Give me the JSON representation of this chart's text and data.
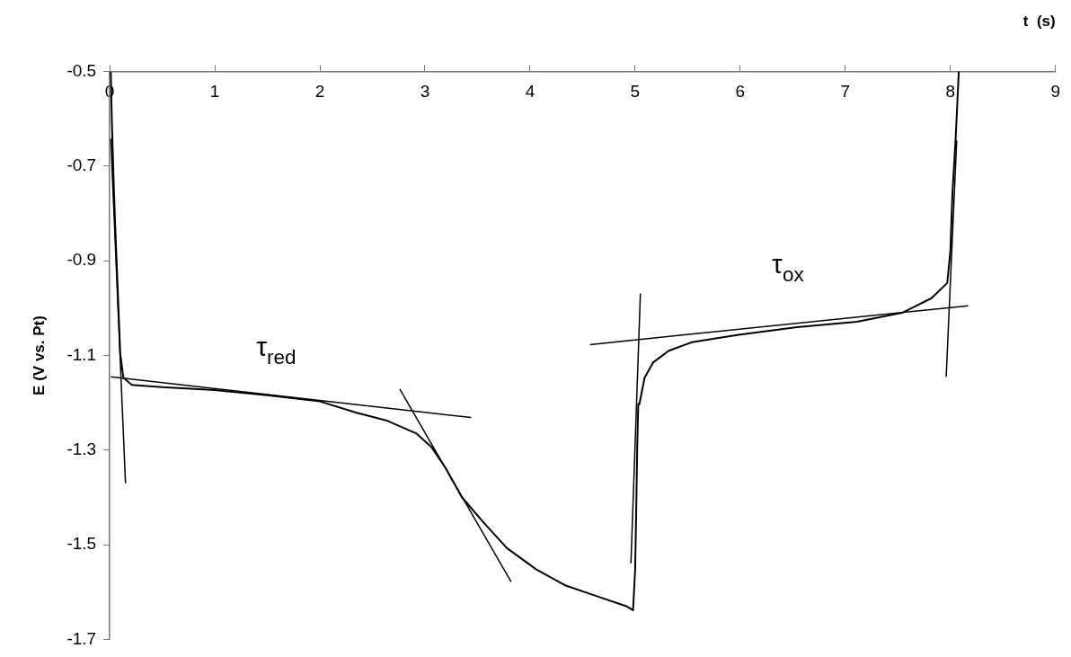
{
  "chart_data": {
    "type": "line",
    "xlabel": "t  (s)",
    "ylabel": "E (V vs. Pt)",
    "xlim": [
      0,
      9
    ],
    "xticks": [
      0,
      1,
      2,
      3,
      4,
      5,
      6,
      7,
      8,
      9
    ],
    "ylim": [
      -1.7,
      -0.5
    ],
    "yticks": [
      -1.7,
      -1.5,
      -1.3,
      -1.1,
      -0.9,
      -0.7,
      -0.5
    ],
    "grid": false,
    "legend": false,
    "marker": "none",
    "line_style": "solid",
    "series": [
      {
        "color": "#000000",
        "x": [
          0.01,
          0.02,
          0.04,
          0.06,
          0.08,
          0.1,
          0.13,
          0.21,
          0.5,
          1,
          1.5,
          2,
          2.35,
          2.63,
          2.92,
          3.06,
          3.2,
          3.35,
          3.55,
          3.78,
          4.06,
          4.34,
          4.63,
          4.91,
          4.98,
          5.0,
          5.01,
          5.02,
          5.03,
          5.04,
          5.09,
          5.17,
          5.32,
          5.54,
          5.97,
          6.54,
          7.11,
          7.54,
          7.82,
          7.97,
          8.0,
          8.02,
          8.05,
          8.08
        ],
        "values": [
          -0.5,
          -0.605,
          -0.754,
          -0.872,
          -0.984,
          -1.096,
          -1.147,
          -1.162,
          -1.167,
          -1.173,
          -1.184,
          -1.197,
          -1.221,
          -1.237,
          -1.265,
          -1.293,
          -1.339,
          -1.399,
          -1.451,
          -1.507,
          -1.552,
          -1.586,
          -1.608,
          -1.629,
          -1.638,
          -1.552,
          -1.431,
          -1.29,
          -1.202,
          -1.203,
          -1.147,
          -1.115,
          -1.09,
          -1.072,
          -1.057,
          -1.04,
          -1.029,
          -1.01,
          -0.979,
          -0.947,
          -0.879,
          -0.754,
          -0.642,
          -0.5
        ]
      },
      {
        "type": "line",
        "color": "#000000",
        "x": [
          0.01,
          0.15
        ],
        "values": [
          -0.642,
          -1.37
        ]
      },
      {
        "type": "line",
        "color": "#000000",
        "x": [
          0.01,
          3.44
        ],
        "values": [
          -1.145,
          -1.231
        ]
      },
      {
        "type": "line",
        "color": "#000000",
        "x": [
          2.76,
          3.82
        ],
        "values": [
          -1.171,
          -1.578
        ]
      },
      {
        "type": "line",
        "color": "#000000",
        "x": [
          4.96,
          5.05
        ],
        "values": [
          -1.539,
          -0.969
        ]
      },
      {
        "type": "line",
        "color": "#000000",
        "x": [
          4.57,
          8.17
        ],
        "values": [
          -1.077,
          -0.995
        ]
      },
      {
        "type": "line",
        "color": "#000000",
        "x": [
          7.96,
          8.06
        ],
        "values": [
          -1.145,
          -0.646
        ]
      }
    ],
    "annotations": [
      "τ$_{red}$",
      "τ$_{ox}$"
    ]
  }
}
